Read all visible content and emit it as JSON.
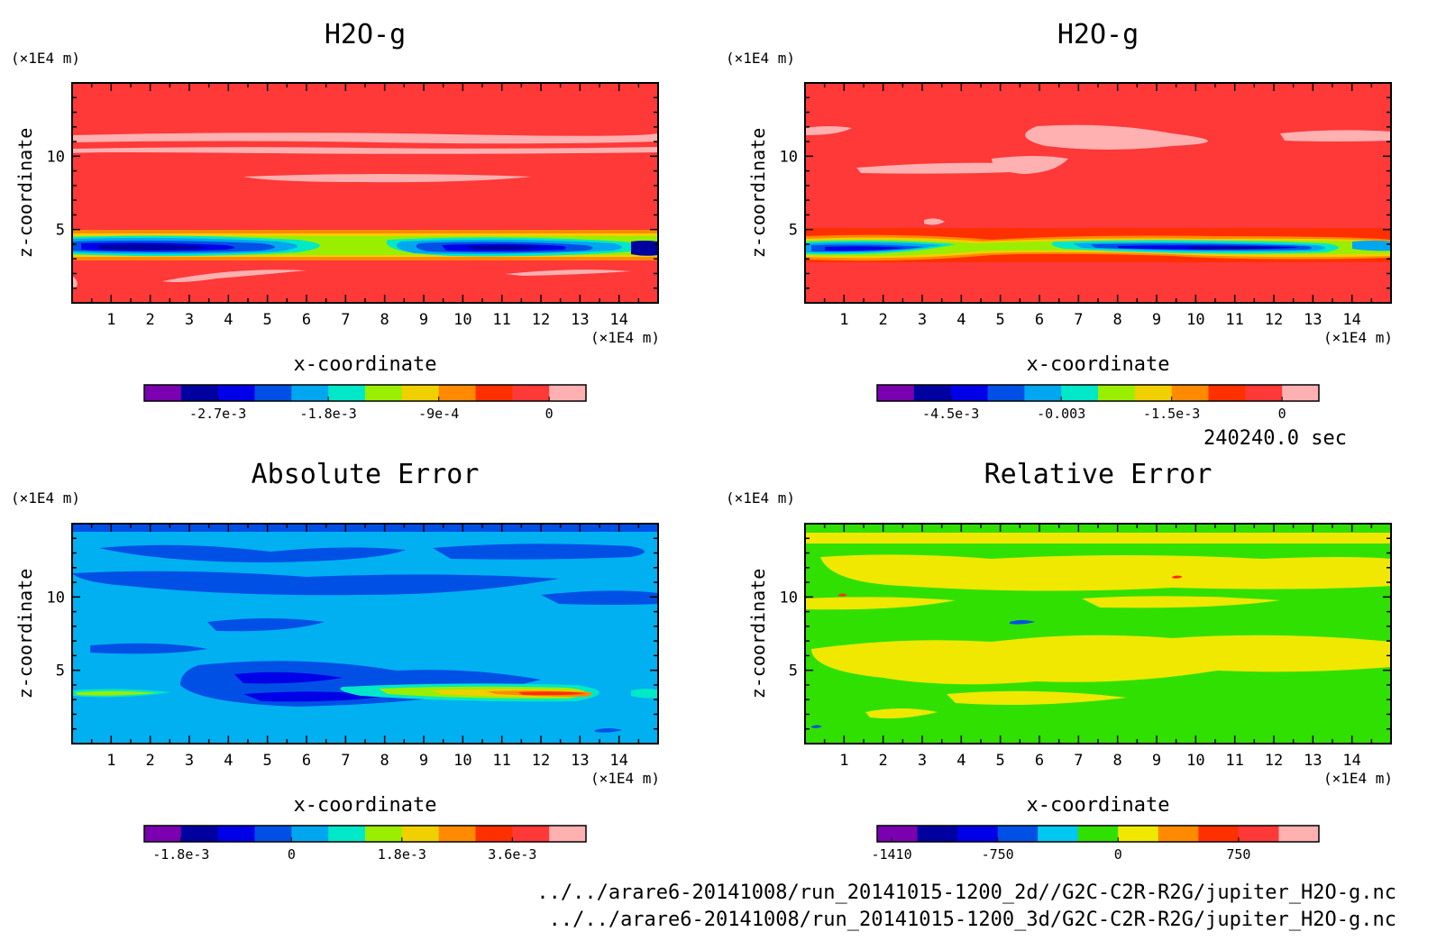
{
  "timestamp": "240240.0 sec",
  "footer": {
    "line1": "../../arare6-20141008/run_20141015-1200_2d//G2C-C2R-R2G/jupiter_H2O-g.nc",
    "line2": "../../arare6-20141008/run_20141015-1200_3d/G2C-C2R-R2G/jupiter_H2O-g.nc"
  },
  "chart_data": [
    {
      "type": "heatmap",
      "title": "H2O-g",
      "xlabel": "x-coordinate",
      "ylabel": "z-coordinate",
      "x_unit": "(×1E4 m)",
      "y_unit": "(×1E4 m)",
      "xlim": [
        0,
        15
      ],
      "ylim": [
        0,
        15
      ],
      "xticks": [
        "1",
        "2",
        "3",
        "4",
        "5",
        "6",
        "7",
        "8",
        "9",
        "10",
        "11",
        "12",
        "13",
        "14"
      ],
      "yticks": [
        "5",
        "10"
      ],
      "colorbar": {
        "min": -0.0033,
        "max": 0.0003,
        "colors": [
          "#7a00b0",
          "#0000a0",
          "#0000e8",
          "#0050e6",
          "#00a6f0",
          "#00e8c8",
          "#9aee00",
          "#f0d000",
          "#ff8a00",
          "#ff3000",
          "#ff3838",
          "#ffb0b0"
        ],
        "tick_labels": [
          "-2.7e-3",
          "-1.8e-3",
          "-9e-4",
          "0"
        ],
        "tick_values": [
          -0.0027,
          -0.0018,
          -0.0009,
          0
        ]
      },
      "background": "#ff3838"
    },
    {
      "type": "heatmap",
      "title": "H2O-g",
      "xlabel": "x-coordinate",
      "ylabel": "z-coordinate",
      "x_unit": "(×1E4 m)",
      "y_unit": "(×1E4 m)",
      "xlim": [
        0,
        15
      ],
      "ylim": [
        0,
        15
      ],
      "xticks": [
        "1",
        "2",
        "3",
        "4",
        "5",
        "6",
        "7",
        "8",
        "9",
        "10",
        "11",
        "12",
        "13",
        "14"
      ],
      "yticks": [
        "5",
        "10"
      ],
      "colorbar": {
        "min": -0.0055,
        "max": 0.0005,
        "colors": [
          "#7a00b0",
          "#0000a0",
          "#0000e8",
          "#0050e6",
          "#00a6f0",
          "#00e8c8",
          "#9aee00",
          "#f0d000",
          "#ff8a00",
          "#ff3000",
          "#ff3838",
          "#ffb0b0"
        ],
        "tick_labels": [
          "-4.5e-3",
          "-0.003",
          "-1.5e-3",
          "0"
        ],
        "tick_values": [
          -0.0045,
          -0.003,
          -0.0015,
          0
        ]
      },
      "background": "#ff3838"
    },
    {
      "type": "heatmap",
      "title": "Absolute Error",
      "xlabel": "x-coordinate",
      "ylabel": "z-coordinate",
      "x_unit": "(×1E4 m)",
      "y_unit": "(×1E4 m)",
      "xlim": [
        0,
        15
      ],
      "ylim": [
        0,
        15
      ],
      "xticks": [
        "1",
        "2",
        "3",
        "4",
        "5",
        "6",
        "7",
        "8",
        "9",
        "10",
        "11",
        "12",
        "13",
        "14"
      ],
      "yticks": [
        "5",
        "10"
      ],
      "colorbar": {
        "min": -0.0024,
        "max": 0.0048,
        "colors": [
          "#7a00b0",
          "#0000a0",
          "#0000e8",
          "#0050e6",
          "#00a6f0",
          "#00e8c8",
          "#9aee00",
          "#f0d000",
          "#ff8a00",
          "#ff3000",
          "#ff3838",
          "#ffb0b0"
        ],
        "tick_labels": [
          "-1.8e-3",
          "0",
          "1.8e-3",
          "3.6e-3"
        ],
        "tick_values": [
          -0.0018,
          0,
          0.0018,
          0.0036
        ]
      },
      "background": "#00b0f0"
    },
    {
      "type": "heatmap",
      "title": "Relative Error",
      "xlabel": "x-coordinate",
      "ylabel": "z-coordinate",
      "x_unit": "(×1E4 m)",
      "y_unit": "(×1E4 m)",
      "xlim": [
        0,
        15
      ],
      "ylim": [
        0,
        15
      ],
      "xticks": [
        "1",
        "2",
        "3",
        "4",
        "5",
        "6",
        "7",
        "8",
        "9",
        "10",
        "11",
        "12",
        "13",
        "14"
      ],
      "yticks": [
        "5",
        "10"
      ],
      "colorbar": {
        "min": -1500,
        "max": 1250,
        "colors": [
          "#7a00b0",
          "#0000a0",
          "#0000e8",
          "#0050e6",
          "#00c8f0",
          "#30e000",
          "#f0e800",
          "#ff8a00",
          "#ff3000",
          "#ff3838",
          "#ffb0b0"
        ],
        "tick_labels": [
          "-1410",
          "-750",
          "0",
          "750"
        ],
        "tick_values": [
          -1410,
          -750,
          0,
          750
        ]
      },
      "background": "#30e000"
    }
  ]
}
